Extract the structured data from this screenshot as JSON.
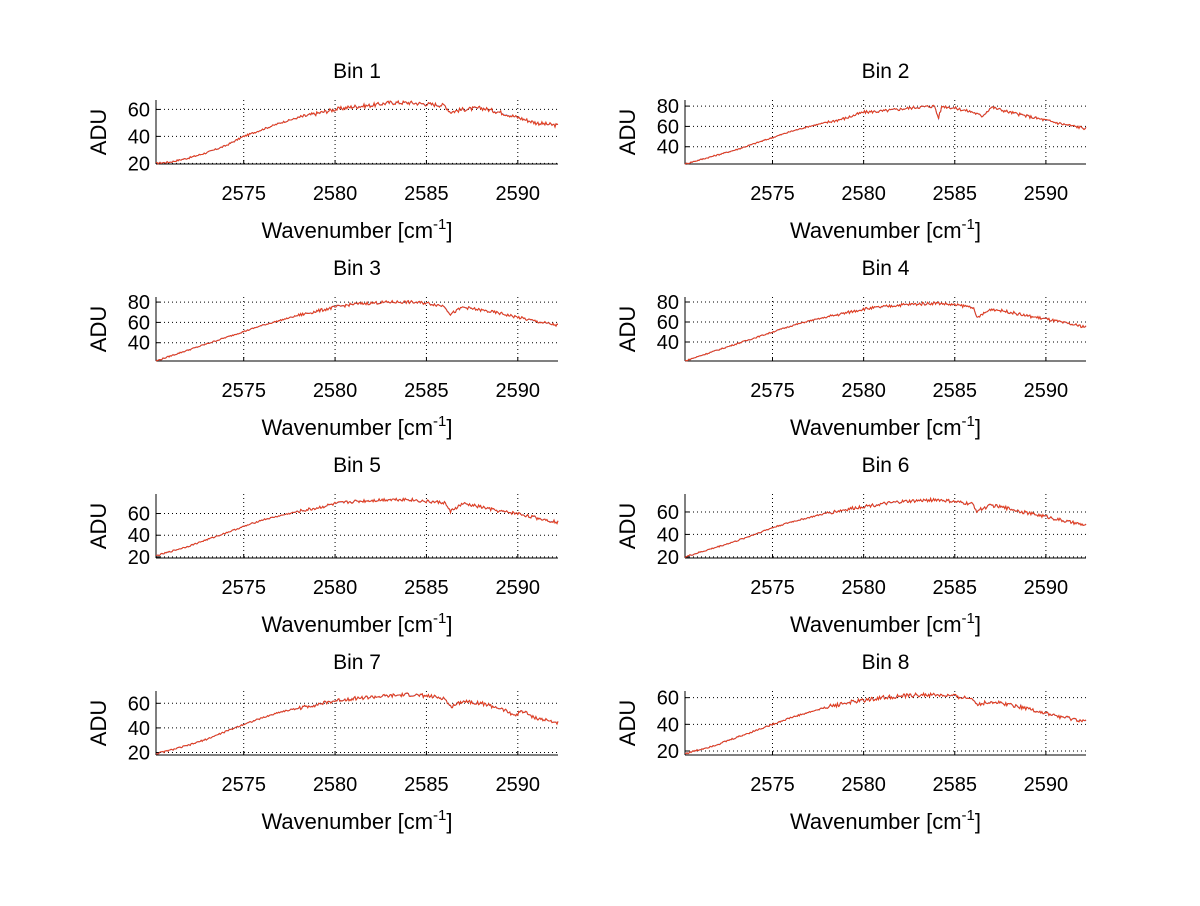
{
  "chart_data": [
    {
      "type": "line",
      "title": "Bin 1",
      "xlabel": "Wavenumber [cm",
      "xlabel_sup": "-1",
      "xlabel_end": "]",
      "ylabel": "ADU",
      "xlim": [
        2570.2,
        2592.2
      ],
      "ylim": [
        19.5,
        67
      ],
      "xticks": [
        2575,
        2580,
        2585,
        2590
      ],
      "yticks": [
        20,
        40,
        60
      ],
      "grid": true,
      "x": [
        2570.2,
        2571,
        2572,
        2573,
        2574,
        2575,
        2576,
        2577,
        2578,
        2579,
        2580,
        2581,
        2582,
        2583,
        2584,
        2585,
        2586,
        2586.3,
        2587,
        2588,
        2589,
        2590,
        2591,
        2592.2
      ],
      "y": [
        20,
        21,
        24,
        28,
        33,
        40,
        45,
        50,
        54,
        57,
        60,
        62,
        63,
        65,
        65,
        64,
        63,
        58,
        60,
        61,
        58,
        54,
        50,
        48
      ]
    },
    {
      "type": "line",
      "title": "Bin 2",
      "xlabel": "Wavenumber [cm",
      "xlabel_sup": "-1",
      "xlabel_end": "]",
      "ylabel": "ADU",
      "xlim": [
        2570.2,
        2592.2
      ],
      "ylim": [
        23,
        86
      ],
      "xticks": [
        2575,
        2580,
        2585,
        2590
      ],
      "yticks": [
        40,
        60,
        80
      ],
      "grid": true,
      "x": [
        2570.2,
        2571,
        2572,
        2573,
        2574,
        2575,
        2576,
        2577,
        2578,
        2579,
        2580,
        2581,
        2582,
        2583,
        2583.9,
        2584.1,
        2584.3,
        2585,
        2586,
        2586.5,
        2587,
        2588,
        2589,
        2590,
        2591,
        2592.2
      ],
      "y": [
        23,
        27,
        32,
        37,
        43,
        49,
        55,
        60,
        64,
        68,
        74,
        75,
        77,
        79,
        80,
        68,
        80,
        78,
        74,
        70,
        79,
        74,
        70,
        66,
        62,
        58
      ]
    },
    {
      "type": "line",
      "title": "Bin 3",
      "xlabel": "Wavenumber [cm",
      "xlabel_sup": "-1",
      "xlabel_end": "]",
      "ylabel": "ADU",
      "xlim": [
        2570.2,
        2592.2
      ],
      "ylim": [
        22,
        85
      ],
      "xticks": [
        2575,
        2580,
        2585,
        2590
      ],
      "yticks": [
        40,
        60,
        80
      ],
      "grid": true,
      "x": [
        2570.2,
        2571,
        2572,
        2573,
        2574,
        2575,
        2576,
        2577,
        2578,
        2579,
        2580,
        2581,
        2582,
        2583,
        2584,
        2585,
        2586,
        2586.3,
        2587,
        2588,
        2589,
        2590,
        2591,
        2592.2
      ],
      "y": [
        22,
        27,
        33,
        39,
        45,
        51,
        57,
        62,
        67,
        71,
        75,
        78,
        79,
        80,
        80,
        79,
        76,
        68,
        75,
        72,
        69,
        65,
        61,
        57
      ]
    },
    {
      "type": "line",
      "title": "Bin 4",
      "xlabel": "Wavenumber [cm",
      "xlabel_sup": "-1",
      "xlabel_end": "]",
      "ylabel": "ADU",
      "xlim": [
        2570.2,
        2592.2
      ],
      "ylim": [
        21,
        85
      ],
      "xticks": [
        2575,
        2580,
        2585,
        2590
      ],
      "yticks": [
        40,
        60,
        80
      ],
      "grid": true,
      "x": [
        2570.2,
        2571,
        2572,
        2573,
        2574,
        2575,
        2576,
        2577,
        2578,
        2579,
        2580,
        2581,
        2582,
        2583,
        2584,
        2585,
        2586,
        2586.2,
        2587,
        2588,
        2589,
        2590,
        2591,
        2592.2
      ],
      "y": [
        21,
        26,
        32,
        38,
        44,
        50,
        56,
        61,
        65,
        69,
        73,
        75,
        77,
        78,
        79,
        77,
        75,
        64,
        73,
        70,
        66,
        63,
        59,
        55
      ]
    },
    {
      "type": "line",
      "title": "Bin 5",
      "xlabel": "Wavenumber [cm",
      "xlabel_sup": "-1",
      "xlabel_end": "]",
      "ylabel": "ADU",
      "xlim": [
        2570.2,
        2592.2
      ],
      "ylim": [
        19,
        78
      ],
      "xticks": [
        2575,
        2580,
        2585,
        2590
      ],
      "yticks": [
        20,
        40,
        60
      ],
      "grid": true,
      "x": [
        2570.2,
        2571,
        2572,
        2573,
        2574,
        2575,
        2576,
        2577,
        2578,
        2579,
        2580,
        2581,
        2582,
        2583,
        2584,
        2585,
        2586,
        2586.3,
        2587,
        2588,
        2589,
        2590,
        2591,
        2592.2
      ],
      "y": [
        21,
        25,
        30,
        36,
        42,
        48,
        54,
        58,
        62,
        65,
        69,
        71,
        72,
        73,
        73,
        71,
        70,
        62,
        69,
        66,
        62,
        60,
        56,
        52
      ]
    },
    {
      "type": "line",
      "title": "Bin 6",
      "xlabel": "Wavenumber [cm",
      "xlabel_sup": "-1",
      "xlabel_end": "]",
      "ylabel": "ADU",
      "xlim": [
        2570.2,
        2592.2
      ],
      "ylim": [
        19,
        76
      ],
      "xticks": [
        2575,
        2580,
        2585,
        2590
      ],
      "yticks": [
        20,
        40,
        60
      ],
      "grid": true,
      "x": [
        2570.2,
        2571,
        2572,
        2573,
        2574,
        2575,
        2576,
        2577,
        2578,
        2579,
        2580,
        2581,
        2582,
        2583,
        2584,
        2585,
        2586,
        2586.2,
        2587,
        2588,
        2589,
        2590,
        2591,
        2592.2
      ],
      "y": [
        20,
        24,
        29,
        34,
        40,
        46,
        51,
        55,
        59,
        62,
        65,
        67,
        69,
        70,
        71,
        69,
        67,
        61,
        66,
        63,
        59,
        56,
        52,
        48
      ]
    },
    {
      "type": "line",
      "title": "Bin 7",
      "xlabel": "Wavenumber [cm",
      "xlabel_sup": "-1",
      "xlabel_end": "]",
      "ylabel": "ADU",
      "xlim": [
        2570.2,
        2592.2
      ],
      "ylim": [
        18,
        70
      ],
      "xticks": [
        2575,
        2580,
        2585,
        2590
      ],
      "yticks": [
        20,
        40,
        60
      ],
      "grid": true,
      "x": [
        2570.2,
        2571,
        2572,
        2573,
        2574,
        2575,
        2576,
        2577,
        2578,
        2579,
        2580,
        2581,
        2582,
        2583,
        2584,
        2585,
        2586,
        2586.3,
        2587,
        2588,
        2589,
        2589.9,
        2590.2,
        2591,
        2592.2
      ],
      "y": [
        19,
        22,
        26,
        31,
        37,
        43,
        48,
        53,
        56,
        59,
        62,
        64,
        65,
        66,
        67,
        66,
        64,
        57,
        62,
        60,
        56,
        50,
        54,
        48,
        44
      ]
    },
    {
      "type": "line",
      "title": "Bin 8",
      "xlabel": "Wavenumber [cm",
      "xlabel_sup": "-1",
      "xlabel_end": "]",
      "ylabel": "ADU",
      "xlim": [
        2570.2,
        2592.2
      ],
      "ylim": [
        17,
        65
      ],
      "xticks": [
        2575,
        2580,
        2585,
        2590
      ],
      "yticks": [
        20,
        40,
        60
      ],
      "grid": true,
      "x": [
        2570.2,
        2571,
        2572,
        2573,
        2574,
        2575,
        2576,
        2577,
        2578,
        2579,
        2580,
        2581,
        2582,
        2583,
        2584,
        2585,
        2586,
        2586.3,
        2587,
        2588,
        2589,
        2590,
        2591,
        2592.2
      ],
      "y": [
        18,
        21,
        25,
        30,
        35,
        40,
        45,
        49,
        53,
        56,
        58,
        60,
        61,
        62,
        62,
        61,
        59,
        55,
        57,
        55,
        52,
        48,
        45,
        42
      ]
    }
  ],
  "colors": {
    "line_main": "#e8401c",
    "line_under": "#5a4aa8",
    "grid": "#000000"
  }
}
